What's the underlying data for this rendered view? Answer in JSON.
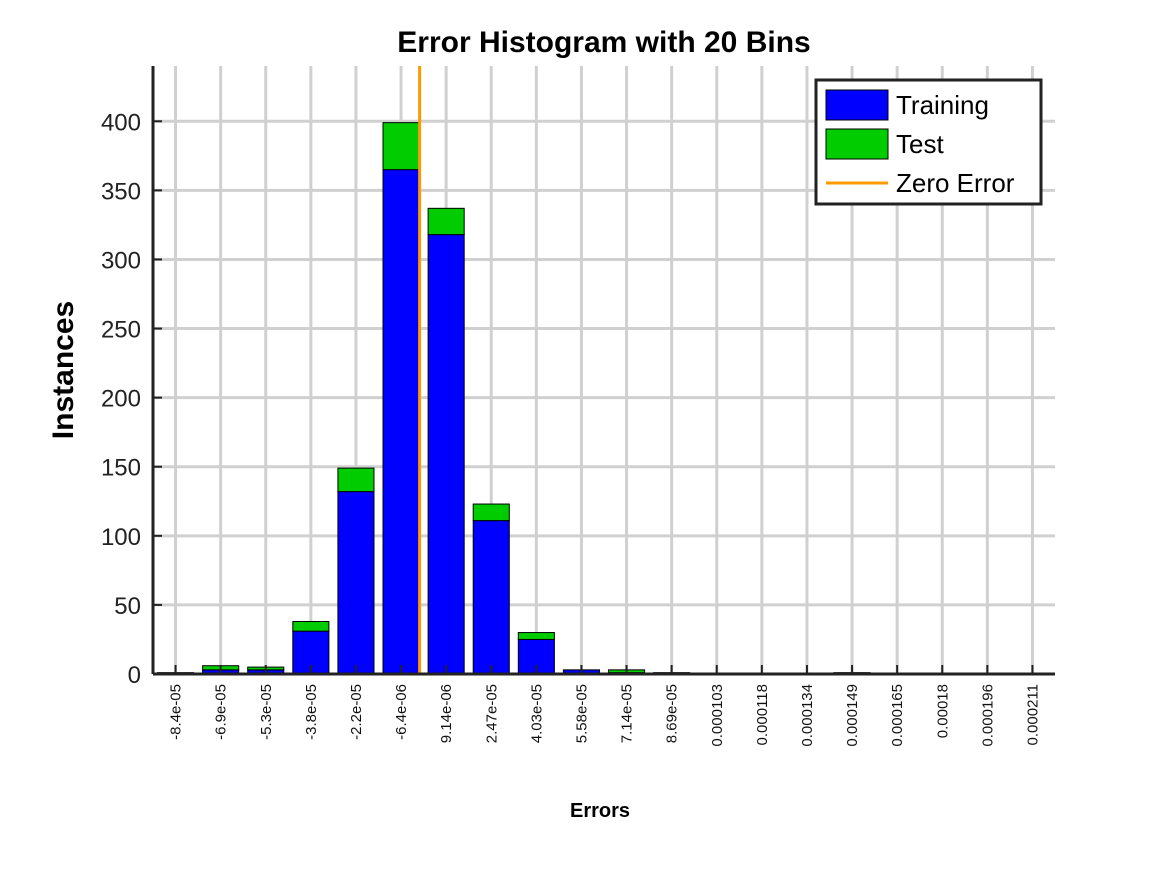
{
  "chart_data": {
    "type": "bar",
    "stacked": true,
    "title": "Error Histogram with 20 Bins",
    "xlabel": "Errors",
    "ylabel": "Instances",
    "ylim": [
      0,
      440
    ],
    "yticks": [
      0,
      50,
      100,
      150,
      200,
      250,
      300,
      350,
      400
    ],
    "grid": true,
    "legend_position": "top-right",
    "categories": [
      "-8.4e-05",
      "-6.9e-05",
      "-5.3e-05",
      "-3.8e-05",
      "-2.2e-05",
      "-6.4e-06",
      "9.14e-06",
      "2.47e-05",
      "4.03e-05",
      "5.58e-05",
      "7.14e-05",
      "8.69e-05",
      "0.000103",
      "0.000118",
      "0.000134",
      "0.000149",
      "0.000165",
      "0.00018",
      "0.000196",
      "0.000211"
    ],
    "series": [
      {
        "name": "Training",
        "color": "#0000ff",
        "values": [
          1,
          3,
          3,
          31,
          132,
          365,
          318,
          111,
          25,
          3,
          1,
          1,
          0,
          0,
          0,
          1,
          0,
          0,
          0,
          0
        ]
      },
      {
        "name": "Test",
        "color": "#00cc00",
        "values": [
          0,
          3,
          2,
          7,
          17,
          34,
          19,
          12,
          5,
          0,
          2,
          0,
          0,
          0,
          0,
          0,
          0,
          0,
          0,
          0
        ]
      }
    ],
    "reference_line": {
      "name": "Zero Error",
      "color": "#ff9900",
      "x": 0
    }
  }
}
